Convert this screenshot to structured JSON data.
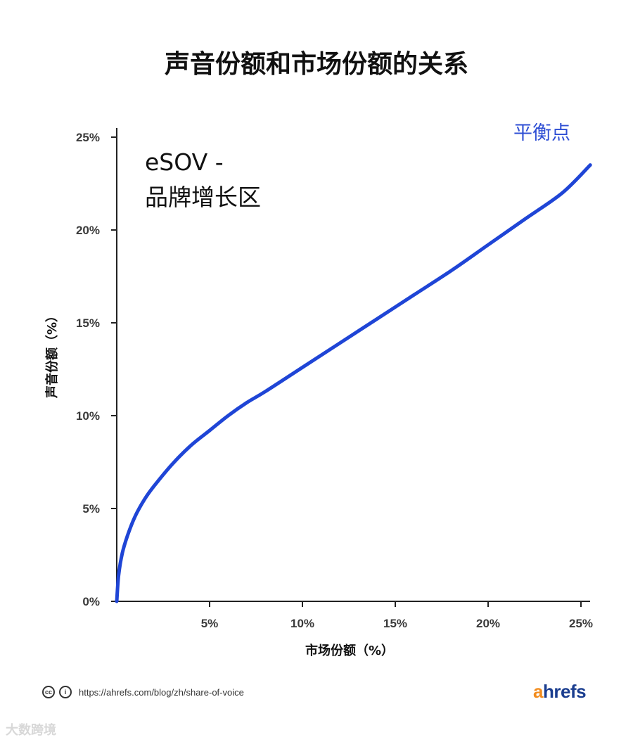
{
  "title": "声音份额和市场份额的关系",
  "chart_data": {
    "type": "line",
    "xlabel": "市场份额（%）",
    "ylabel": "声音份额（%）",
    "xlim": [
      0,
      25.5
    ],
    "ylim": [
      0,
      25
    ],
    "x_ticks": [
      5,
      10,
      15,
      20,
      25
    ],
    "x_tick_labels": [
      "5%",
      "10%",
      "15%",
      "20%",
      "25%"
    ],
    "y_ticks": [
      0,
      5,
      10,
      15,
      20,
      25
    ],
    "y_tick_labels": [
      "0%",
      "5%",
      "10%",
      "15%",
      "20%",
      "25%"
    ],
    "grid": false,
    "series": [
      {
        "name": "平衡点",
        "color": "#1f45d6",
        "x": [
          0,
          0.1,
          0.3,
          0.6,
          1,
          1.5,
          2,
          3,
          4,
          5,
          6,
          7,
          8,
          10,
          12,
          14,
          16,
          18,
          20,
          22,
          24,
          25.5
        ],
        "y": [
          0,
          1.4,
          2.6,
          3.6,
          4.6,
          5.5,
          6.2,
          7.4,
          8.4,
          9.2,
          10.0,
          10.7,
          11.3,
          12.6,
          13.9,
          15.2,
          16.5,
          17.8,
          19.2,
          20.6,
          22.0,
          23.5
        ]
      }
    ],
    "annotation": [
      "eSOV -",
      "品牌增长区"
    ]
  },
  "footer": {
    "cc_icon": "cc-icon",
    "by_icon": "attribution-icon",
    "url": "https://ahrefs.com/blog/zh/share-of-voice",
    "logo_a": "a",
    "logo_rest": "hrefs"
  },
  "watermark": "大数跨境"
}
